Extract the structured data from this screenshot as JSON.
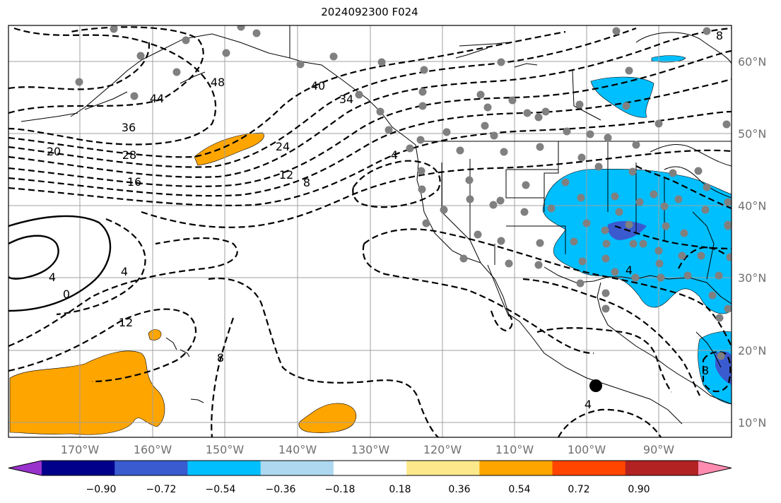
{
  "title": "2024092300 F024",
  "longitude_labels": [
    "170°W",
    "160°W",
    "150°W",
    "140°W",
    "130°W",
    "120°W",
    "110°W",
    "100°W",
    "90°W"
  ],
  "latitude_labels": [
    "60°N",
    "50°N",
    "40°N",
    "30°N",
    "20°N",
    "10°N"
  ],
  "contour_labels": [
    "48",
    "44",
    "40",
    "36",
    "34",
    "28",
    "24",
    "20",
    "16",
    "12",
    "8",
    "4",
    "4",
    "0",
    "4",
    "12",
    "8",
    "4",
    "4",
    "8",
    "8"
  ],
  "colorbar": {
    "tick_labels": [
      "−0.90",
      "−0.72",
      "−0.54",
      "−0.36",
      "−0.18",
      "0.18",
      "0.36",
      "0.54",
      "0.72",
      "0.90"
    ],
    "colors": [
      "#9932cc",
      "#00008b",
      "#3a5bd0",
      "#00bfff",
      "#add8f0",
      "#ffffff",
      "#fde98b",
      "#ffa500",
      "#ff4500",
      "#b22222",
      "#ff8cb0"
    ]
  },
  "colors": {
    "positive_fill": "#ffa500",
    "negative_fill": "#00bfff",
    "strong_negative_fill": "#3a5bd0",
    "station_dot": "#808080"
  },
  "marker": "black-dot"
}
